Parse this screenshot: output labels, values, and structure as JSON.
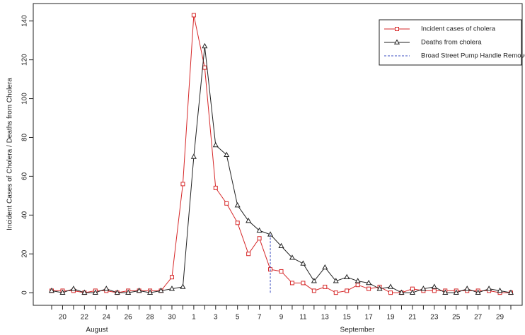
{
  "chart_data": {
    "type": "line",
    "ylabel": "Incident Cases of Cholera / Deaths from Cholera",
    "categories": [
      null,
      "20",
      null,
      "22",
      null,
      "24",
      null,
      "26",
      null,
      "28",
      null,
      "30",
      null,
      "1",
      null,
      "3",
      null,
      "5",
      null,
      "7",
      null,
      "9",
      null,
      "11",
      null,
      "13",
      null,
      "15",
      null,
      "17",
      null,
      "19",
      null,
      "21",
      null,
      "23",
      null,
      "25",
      null,
      "27",
      null,
      "29",
      null
    ],
    "x_group_labels": [
      "August",
      "September"
    ],
    "series": [
      {
        "name": "Incident cases of cholera",
        "color": "#d62728",
        "marker": "square",
        "linestyle": "solid",
        "values": [
          1,
          1,
          1,
          0,
          1,
          1,
          0,
          1,
          1,
          1,
          1,
          8,
          56,
          143,
          116,
          54,
          46,
          36,
          20,
          28,
          12,
          11,
          5,
          5,
          1,
          3,
          0,
          1,
          4,
          2,
          3,
          0,
          0,
          2,
          1,
          1,
          1,
          1,
          1,
          1,
          1,
          0,
          0
        ]
      },
      {
        "name": "Deaths from cholera",
        "color": "#222222",
        "marker": "triangle",
        "linestyle": "solid",
        "values": [
          1,
          0,
          2,
          0,
          0,
          2,
          0,
          0,
          1,
          0,
          1,
          2,
          3,
          70,
          127,
          76,
          71,
          45,
          37,
          32,
          30,
          24,
          18,
          15,
          6,
          13,
          6,
          8,
          6,
          5,
          2,
          3,
          0,
          0,
          2,
          3,
          0,
          0,
          2,
          0,
          2,
          1,
          0
        ]
      },
      {
        "name": "Broad Street Pump Handle Removed",
        "color": "#3b4cc0",
        "marker": "none",
        "linestyle": "dashed",
        "values": [
          null,
          null,
          null,
          null,
          null,
          null,
          null,
          null,
          null,
          null,
          null,
          null,
          null,
          null,
          null,
          null,
          null,
          null,
          null,
          null,
          30,
          null,
          null,
          null,
          null,
          null,
          null,
          null,
          null,
          null,
          null,
          null,
          null,
          null,
          null,
          null,
          null,
          null,
          null,
          null,
          null,
          null,
          null
        ]
      }
    ],
    "ylim": [
      -6.5,
      149
    ],
    "yticks": [
      0,
      20,
      40,
      60,
      80,
      100,
      120,
      140
    ],
    "legend": "top-right"
  }
}
